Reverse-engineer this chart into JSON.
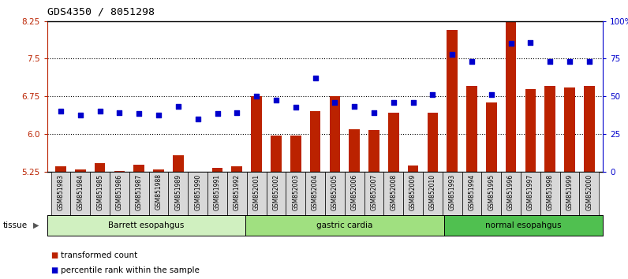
{
  "title": "GDS4350 / 8051298",
  "samples": [
    "GSM851983",
    "GSM851984",
    "GSM851985",
    "GSM851986",
    "GSM851987",
    "GSM851988",
    "GSM851989",
    "GSM851990",
    "GSM851991",
    "GSM851992",
    "GSM852001",
    "GSM852002",
    "GSM852003",
    "GSM852004",
    "GSM852005",
    "GSM852006",
    "GSM852007",
    "GSM852008",
    "GSM852009",
    "GSM852010",
    "GSM851993",
    "GSM851994",
    "GSM851995",
    "GSM851996",
    "GSM851997",
    "GSM851998",
    "GSM851999",
    "GSM852000"
  ],
  "bar_values": [
    5.35,
    5.3,
    5.42,
    5.26,
    5.38,
    5.3,
    5.58,
    5.24,
    5.32,
    5.36,
    6.75,
    5.97,
    5.97,
    6.45,
    6.75,
    6.1,
    6.08,
    6.42,
    5.37,
    6.42,
    8.07,
    6.95,
    6.62,
    8.4,
    6.9,
    6.95,
    6.92,
    6.95
  ],
  "dot_values": [
    6.46,
    6.38,
    6.46,
    6.42,
    6.4,
    6.38,
    6.55,
    6.3,
    6.4,
    6.42,
    6.75,
    6.68,
    6.53,
    7.12,
    6.62,
    6.55,
    6.42,
    6.62,
    6.62,
    6.78,
    7.58,
    7.45,
    6.78,
    7.8,
    7.82,
    7.45,
    7.45,
    7.45
  ],
  "groups": [
    {
      "label": "Barrett esopahgus",
      "start": 0,
      "end": 10,
      "color": "#d0f0c0"
    },
    {
      "label": "gastric cardia",
      "start": 10,
      "end": 20,
      "color": "#a0e080"
    },
    {
      "label": "normal esopahgus",
      "start": 20,
      "end": 28,
      "color": "#50c050"
    }
  ],
  "ylim_left": [
    5.25,
    8.25
  ],
  "yticks_left": [
    5.25,
    6.0,
    6.75,
    7.5,
    8.25
  ],
  "yticks_right": [
    0,
    25,
    50,
    75,
    100
  ],
  "ytick_labels_right": [
    "0",
    "25",
    "50",
    "75",
    "100%"
  ],
  "bar_color": "#bb2200",
  "dot_color": "#0000cc",
  "bar_width": 0.55,
  "hgrid_lines": [
    6.0,
    6.75,
    7.5
  ],
  "legend_items": [
    "transformed count",
    "percentile rank within the sample"
  ]
}
